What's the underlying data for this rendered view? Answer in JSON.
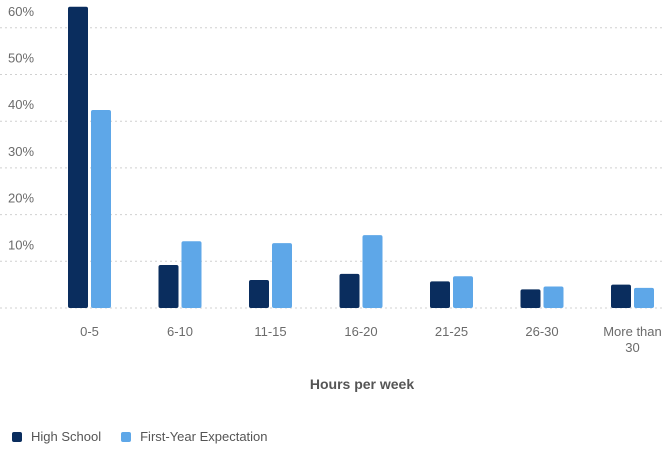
{
  "chart_data": {
    "type": "bar",
    "title": "",
    "xlabel": "Hours per week",
    "ylabel": "",
    "categories": [
      "0-5",
      "6-10",
      "11-15",
      "16-20",
      "21-25",
      "26-30",
      "More than 30"
    ],
    "category_label_lines": [
      [
        "0-5"
      ],
      [
        "6-10"
      ],
      [
        "11-15"
      ],
      [
        "16-20"
      ],
      [
        "21-25"
      ],
      [
        "26-30"
      ],
      [
        "More than",
        "30"
      ]
    ],
    "y_ticks": [
      10,
      20,
      30,
      40,
      50,
      60
    ],
    "y_tick_labels": [
      "10%",
      "20%",
      "30%",
      "40%",
      "50%",
      "60%"
    ],
    "ylim": [
      0,
      65
    ],
    "grid": true,
    "legend_position": "bottom-left",
    "series": [
      {
        "name": "High School",
        "color": "#0a2d5e",
        "values": [
          64.5,
          9.2,
          6.0,
          7.3,
          5.7,
          4.0,
          5.0
        ]
      },
      {
        "name": "First-Year Expectation",
        "color": "#5ea7e8",
        "values": [
          42.4,
          14.3,
          13.9,
          15.6,
          6.8,
          4.6,
          4.3
        ]
      }
    ]
  }
}
